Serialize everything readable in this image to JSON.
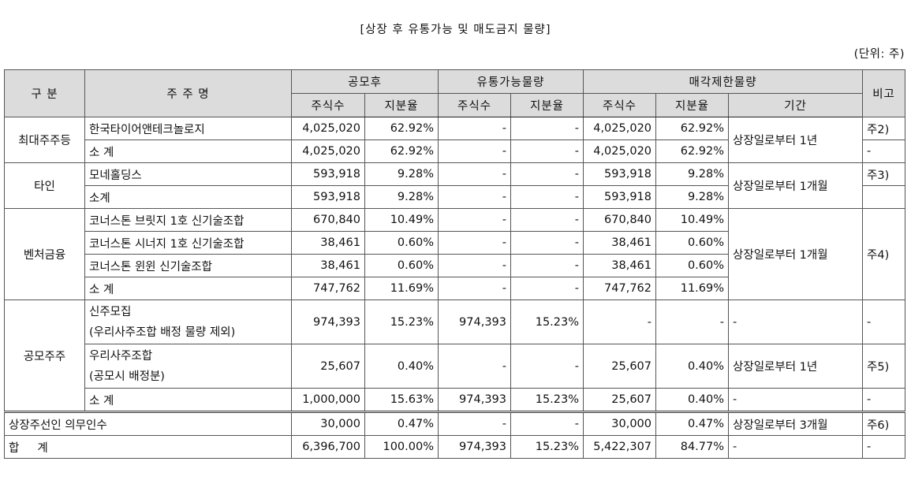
{
  "title": "[상장 후 유통가능 및 매도금지 물량]",
  "unit": "(단위: 주)",
  "headers": {
    "category": "구 분",
    "holder": "주 주 명",
    "after_ipo": "공모후",
    "tradable": "유통가능물량",
    "restricted": "매각제한물량",
    "note": "비고",
    "shares": "주식수",
    "ratio": "지분율",
    "period": "기간"
  },
  "groups": {
    "largest": "최대주주등",
    "other": "타인",
    "venture": "벤처금융",
    "public": "공모주주"
  },
  "rows": [
    {
      "name": "한국타이어앤테크놀로지",
      "a_shares": "4,025,020",
      "a_ratio": "62.92%",
      "t_shares": "-",
      "t_ratio": "-",
      "r_shares": "4,025,020",
      "r_ratio": "62.92%",
      "period": "상장일로부터 1년",
      "note": "주2)"
    },
    {
      "name": "소 계",
      "a_shares": "4,025,020",
      "a_ratio": "62.92%",
      "t_shares": "-",
      "t_ratio": "-",
      "r_shares": "4,025,020",
      "r_ratio": "62.92%",
      "period": "",
      "note": "-"
    },
    {
      "name": "모네홀딩스",
      "a_shares": "593,918",
      "a_ratio": "9.28%",
      "t_shares": "-",
      "t_ratio": "-",
      "r_shares": "593,918",
      "r_ratio": "9.28%",
      "period": "상장일로부터 1개월",
      "note": "주3)"
    },
    {
      "name": "소계",
      "a_shares": "593,918",
      "a_ratio": "9.28%",
      "t_shares": "-",
      "t_ratio": "-",
      "r_shares": "593,918",
      "r_ratio": "9.28%",
      "period": "",
      "note": ""
    },
    {
      "name": "코너스톤 브릿지 1호 신기술조합",
      "a_shares": "670,840",
      "a_ratio": "10.49%",
      "t_shares": "-",
      "t_ratio": "-",
      "r_shares": "670,840",
      "r_ratio": "10.49%",
      "period": "상장일로부터 1개월",
      "note": "주4)"
    },
    {
      "name": "코너스톤 시너지 1호 신기술조합",
      "a_shares": "38,461",
      "a_ratio": "0.60%",
      "t_shares": "-",
      "t_ratio": "-",
      "r_shares": "38,461",
      "r_ratio": "0.60%",
      "period": "",
      "note": ""
    },
    {
      "name": "코너스톤 윈윈 신기술조합",
      "a_shares": "38,461",
      "a_ratio": "0.60%",
      "t_shares": "-",
      "t_ratio": "-",
      "r_shares": "38,461",
      "r_ratio": "0.60%",
      "period": "",
      "note": ""
    },
    {
      "name": "소 계",
      "a_shares": "747,762",
      "a_ratio": "11.69%",
      "t_shares": "-",
      "t_ratio": "-",
      "r_shares": "747,762",
      "r_ratio": "11.69%",
      "period": "",
      "note": ""
    },
    {
      "name": "신주모집",
      "name2": "(우리사주조합 배정 물량 제외)",
      "a_shares": "974,393",
      "a_ratio": "15.23%",
      "t_shares": "974,393",
      "t_ratio": "15.23%",
      "r_shares": "-",
      "r_ratio": "-",
      "period": "-",
      "note": "-"
    },
    {
      "name": "우리사주조합",
      "name2": "(공모시 배정분)",
      "a_shares": "25,607",
      "a_ratio": "0.40%",
      "t_shares": "-",
      "t_ratio": "-",
      "r_shares": "25,607",
      "r_ratio": "0.40%",
      "period": "상장일로부터 1년",
      "note": "주5)"
    },
    {
      "name": "소 계",
      "a_shares": "1,000,000",
      "a_ratio": "15.63%",
      "t_shares": "974,393",
      "t_ratio": "15.23%",
      "r_shares": "25,607",
      "r_ratio": "0.40%",
      "period": "-",
      "note": "-"
    },
    {
      "name": "상장주선인 의무인수",
      "a_shares": "30,000",
      "a_ratio": "0.47%",
      "t_shares": "-",
      "t_ratio": "-",
      "r_shares": "30,000",
      "r_ratio": "0.47%",
      "period": "상장일로부터 3개월",
      "note": "주6)"
    },
    {
      "name": "합     계",
      "a_shares": "6,396,700",
      "a_ratio": "100.00%",
      "t_shares": "974,393",
      "t_ratio": "15.23%",
      "r_shares": "5,422,307",
      "r_ratio": "84.77%",
      "period": "-",
      "note": "-"
    }
  ]
}
